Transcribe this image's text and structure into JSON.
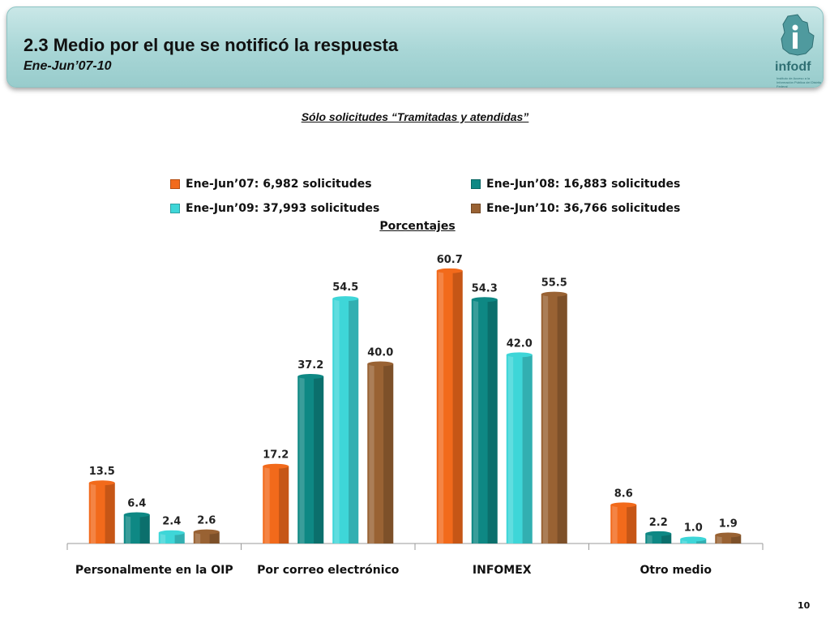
{
  "header": {
    "title": "2.3 Medio por el que se notificó la respuesta",
    "subtitle": "Ene-Jun’07-10",
    "logo_text": "infodf",
    "logo_small": "Instituto de Acceso a la Información Pública del Distrito Federal"
  },
  "note": "Sólo solicitudes “Tramitadas y atendidas”",
  "unit_label": "Porcentajes",
  "page_number": "10",
  "colors": {
    "header": "#a8d6d6",
    "series": [
      "#f26a1b",
      "#0e8884",
      "#3ed6d8",
      "#996233"
    ]
  },
  "chart_data": {
    "type": "bar",
    "categories": [
      "Personalmente en la OIP",
      "Por correo electrónico",
      "INFOMEX",
      "Otro medio"
    ],
    "series": [
      {
        "name": "Ene-Jun’07: 6,982 solicitudes",
        "values": [
          13.5,
          17.2,
          60.7,
          8.6
        ]
      },
      {
        "name": "Ene-Jun’08: 16,883 solicitudes",
        "values": [
          6.4,
          37.2,
          54.3,
          2.2
        ]
      },
      {
        "name": "Ene-Jun’09: 37,993 solicitudes",
        "values": [
          2.4,
          54.5,
          42.0,
          1.0
        ]
      },
      {
        "name": "Ene-Jun’10: 36,766 solicitudes",
        "values": [
          2.6,
          40.0,
          55.5,
          1.9
        ]
      }
    ],
    "value_labels": [
      [
        "13.5",
        "17.2",
        "60.7",
        "8.6"
      ],
      [
        "6.4",
        "37.2",
        "54.3",
        "2.2"
      ],
      [
        "2.4",
        "54.5",
        "42.0",
        "1.0"
      ],
      [
        "2.6",
        "40.0",
        "55.5",
        "1.9"
      ]
    ],
    "ylim": [
      0,
      65
    ],
    "legend_position": "top",
    "grid": false
  }
}
